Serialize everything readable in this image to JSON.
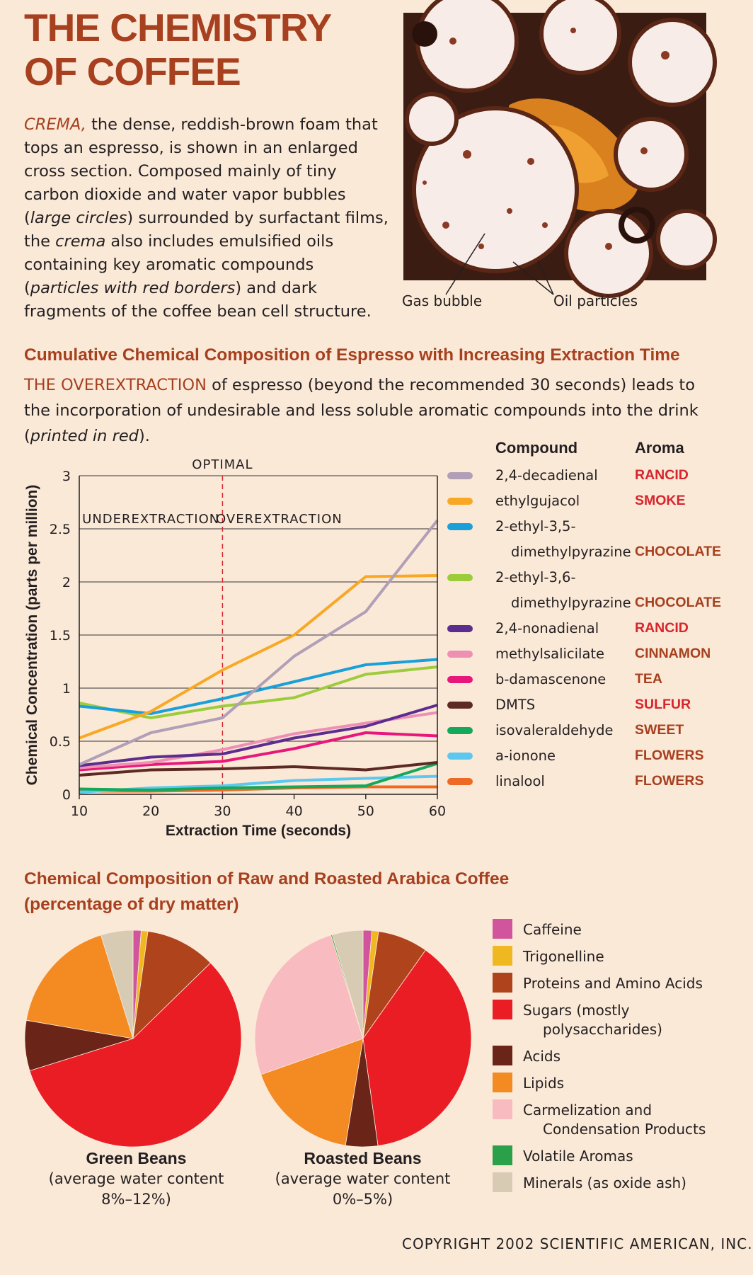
{
  "title": "THE CHEMISTRY OF COFFEE",
  "intro": {
    "lead": "CREMA,",
    "p1": " the dense, reddish-brown foam that tops an espresso, is shown in an enlarged cross section. Composed mainly of tiny carbon dioxide and water vapor bubbles (",
    "i1": "large circles",
    "p2": ") surrounded by surfactant films, the ",
    "i2": "crema",
    "p3": " also includes emulsified oils containing key aromatic compounds (",
    "i3": "particles with red borders",
    "p4": ") and dark fragments of the coffee bean cell structure."
  },
  "photo": {
    "label_gas": "Gas bubble",
    "label_oil": "Oil particles"
  },
  "section1": {
    "heading": "Cumulative Chemical Composition of Espresso with Increasing Extraction Time",
    "lead": "THE OVEREXTRACTION",
    "text": " of espresso (beyond the recommended 30 seconds) leads to the incorporation of undesirable and less soluble aromatic compounds into the drink (",
    "italic": "printed in red",
    "tail": ")."
  },
  "section2": {
    "heading1": "Chemical Composition of Raw and Roasted Arabica Coffee",
    "heading2": "(percentage of dry matter)"
  },
  "legend": {
    "compound_header": "Compound",
    "aroma_header": "Aroma"
  },
  "colors": {
    "accent": "#a6401f",
    "undesirable": "#d7252c",
    "desirable": "#a6401f"
  },
  "chart_data": [
    {
      "type": "line",
      "title": "Cumulative Chemical Composition of Espresso with Increasing Extraction Time",
      "xlabel": "Extraction Time (seconds)",
      "ylabel": "Chemical Concentration (parts per million)",
      "x": [
        10,
        20,
        30,
        40,
        50,
        60
      ],
      "xlim": [
        10,
        60
      ],
      "ylim": [
        0,
        3
      ],
      "xticks": [
        "10",
        "20",
        "30",
        "40",
        "50",
        "60"
      ],
      "yticks": [
        "0",
        "0.5",
        "1",
        "1.5",
        "2",
        "2.5",
        "3"
      ],
      "grid": true,
      "legend_position": "right",
      "annotations": {
        "marker_label": "OPTIMAL",
        "marker_x": 30,
        "left_region": "UNDEREXTRACTION",
        "right_region": "OVEREXTRACTION"
      },
      "series": [
        {
          "name": "2,4-decadienal",
          "aroma": "RANCID",
          "undesirable": true,
          "color": "#b09fb6",
          "values": [
            0.28,
            0.58,
            0.72,
            1.3,
            1.72,
            2.58
          ]
        },
        {
          "name": "ethylgujacol",
          "aroma": "SMOKE",
          "undesirable": true,
          "color": "#f8a824",
          "values": [
            0.53,
            0.78,
            1.17,
            1.5,
            2.05,
            2.06
          ]
        },
        {
          "name": "2-ethyl-3,5-dimethylpyrazine",
          "name_line1": "2-ethyl-3,5-",
          "name_line2": "dimethylpyrazine",
          "aroma": "CHOCOLATE",
          "undesirable": false,
          "color": "#1aa0d8",
          "values": [
            0.83,
            0.76,
            0.9,
            1.06,
            1.22,
            1.27
          ]
        },
        {
          "name": "2-ethyl-3,6-dimethylpyrazine",
          "name_line1": "2-ethyl-3,6-",
          "name_line2": "dimethylpyrazine",
          "aroma": "CHOCOLATE",
          "undesirable": false,
          "color": "#9ccc3c",
          "values": [
            0.86,
            0.72,
            0.83,
            0.91,
            1.13,
            1.2
          ]
        },
        {
          "name": "2,4-nonadienal",
          "aroma": "RANCID",
          "undesirable": true,
          "color": "#5b2d8e",
          "values": [
            0.27,
            0.35,
            0.38,
            0.53,
            0.64,
            0.84
          ]
        },
        {
          "name": "methylsalicilate",
          "aroma": "CINNAMON",
          "undesirable": false,
          "color": "#ee8fb4",
          "values": [
            0.25,
            0.3,
            0.42,
            0.57,
            0.67,
            0.77
          ]
        },
        {
          "name": "b-damascenone",
          "aroma": "TEA",
          "undesirable": false,
          "color": "#e7187a",
          "values": [
            0.23,
            0.28,
            0.31,
            0.43,
            0.58,
            0.55
          ]
        },
        {
          "name": "DMTS",
          "aroma": "SULFUR",
          "undesirable": true,
          "color": "#5c2a22",
          "values": [
            0.18,
            0.23,
            0.24,
            0.26,
            0.23,
            0.3
          ]
        },
        {
          "name": "isovaleraldehyde",
          "aroma": "SWEET",
          "undesirable": false,
          "color": "#14a85a",
          "values": [
            0.05,
            0.04,
            0.06,
            0.07,
            0.08,
            0.29
          ]
        },
        {
          "name": "a-ionone",
          "aroma": "FLOWERS",
          "undesirable": false,
          "color": "#5cc8f0",
          "values": [
            0.02,
            0.06,
            0.08,
            0.13,
            0.15,
            0.17
          ]
        },
        {
          "name": "linalool",
          "aroma": "FLOWERS",
          "undesirable": false,
          "color": "#ee6a24",
          "values": [
            0.03,
            0.03,
            0.04,
            0.06,
            0.07,
            0.07
          ]
        }
      ]
    },
    {
      "type": "pie",
      "title": "Green Beans",
      "caption": [
        "Green Beans",
        "(average water content",
        "8%–12%)"
      ],
      "slices": [
        {
          "name": "Caffeine",
          "value": 1.2,
          "color": "#d1559d"
        },
        {
          "name": "Trigonelline",
          "value": 1.0,
          "color": "#f0b820"
        },
        {
          "name": "Proteins and Amino Acids",
          "value": 10.5,
          "color": "#ae431c"
        },
        {
          "name": "Sugars (mostly polysaccharides)",
          "value": 57.5,
          "color": "#ea1c24"
        },
        {
          "name": "Acids",
          "value": 7.5,
          "color": "#6a2418"
        },
        {
          "name": "Lipids",
          "value": 17.5,
          "color": "#f48a22"
        },
        {
          "name": "Minerals (as oxide ash)",
          "value": 4.8,
          "color": "#d8cbb3"
        }
      ]
    },
    {
      "type": "pie",
      "title": "Roasted Beans",
      "caption": [
        "Roasted Beans",
        "(average water content",
        "0%–5%)"
      ],
      "slices": [
        {
          "name": "Caffeine",
          "value": 1.3,
          "color": "#d1559d"
        },
        {
          "name": "Trigonelline",
          "value": 1.0,
          "color": "#f0b820"
        },
        {
          "name": "Proteins and Amino Acids",
          "value": 7.5,
          "color": "#ae431c"
        },
        {
          "name": "Sugars (mostly polysaccharides)",
          "value": 38.0,
          "color": "#ea1c24"
        },
        {
          "name": "Acids",
          "value": 4.8,
          "color": "#6a2418"
        },
        {
          "name": "Lipids",
          "value": 17.0,
          "color": "#f48a22"
        },
        {
          "name": "Carmelization and Condensation Products",
          "value": 25.6,
          "color": "#f8bcc0"
        },
        {
          "name": "Volatile Aromas",
          "value": 0.2,
          "color": "#2aa048"
        },
        {
          "name": "Minerals (as oxide ash)",
          "value": 4.6,
          "color": "#d8cbb3"
        }
      ]
    }
  ],
  "pie_legend": [
    {
      "lines": [
        "Caffeine"
      ],
      "color": "#d1559d"
    },
    {
      "lines": [
        "Trigonelline"
      ],
      "color": "#f0b820"
    },
    {
      "lines": [
        "Proteins and Amino Acids"
      ],
      "color": "#ae431c"
    },
    {
      "lines": [
        "Sugars (mostly",
        "polysaccharides)"
      ],
      "color": "#ea1c24"
    },
    {
      "lines": [
        "Acids"
      ],
      "color": "#6a2418"
    },
    {
      "lines": [
        "Lipids"
      ],
      "color": "#f48a22"
    },
    {
      "lines": [
        "Carmelization and",
        "Condensation Products"
      ],
      "color": "#f8bcc0"
    },
    {
      "lines": [
        "Volatile Aromas"
      ],
      "color": "#2aa048"
    },
    {
      "lines": [
        "Minerals (as oxide ash)"
      ],
      "color": "#d8cbb3"
    }
  ],
  "copyright": "COPYRIGHT 2002 SCIENTIFIC AMERICAN, INC."
}
